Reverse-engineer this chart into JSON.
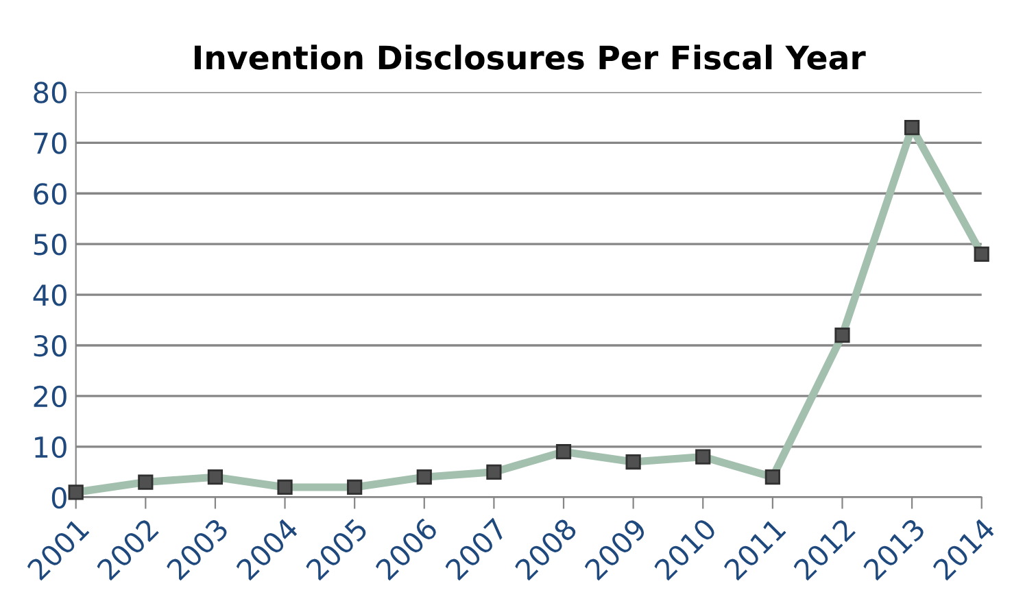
{
  "chart_data": {
    "type": "line",
    "title": "Invention Disclosures Per Fiscal Year",
    "categories": [
      "2001",
      "2002",
      "2003",
      "2004",
      "2005",
      "2006",
      "2007",
      "2008",
      "2009",
      "2010",
      "2011",
      "2012",
      "2013",
      "2014"
    ],
    "series": [
      {
        "color": "#a3bfae",
        "values": [
          1,
          3,
          4,
          2,
          2,
          4,
          5,
          9,
          7,
          8,
          4,
          32,
          73,
          48
        ]
      }
    ],
    "ylim": [
      0,
      80
    ],
    "yticks": [
      0,
      10,
      20,
      30,
      40,
      50,
      60,
      70,
      80
    ],
    "grid": "y",
    "marker": "square",
    "line_style": "solid",
    "legend": false
  }
}
